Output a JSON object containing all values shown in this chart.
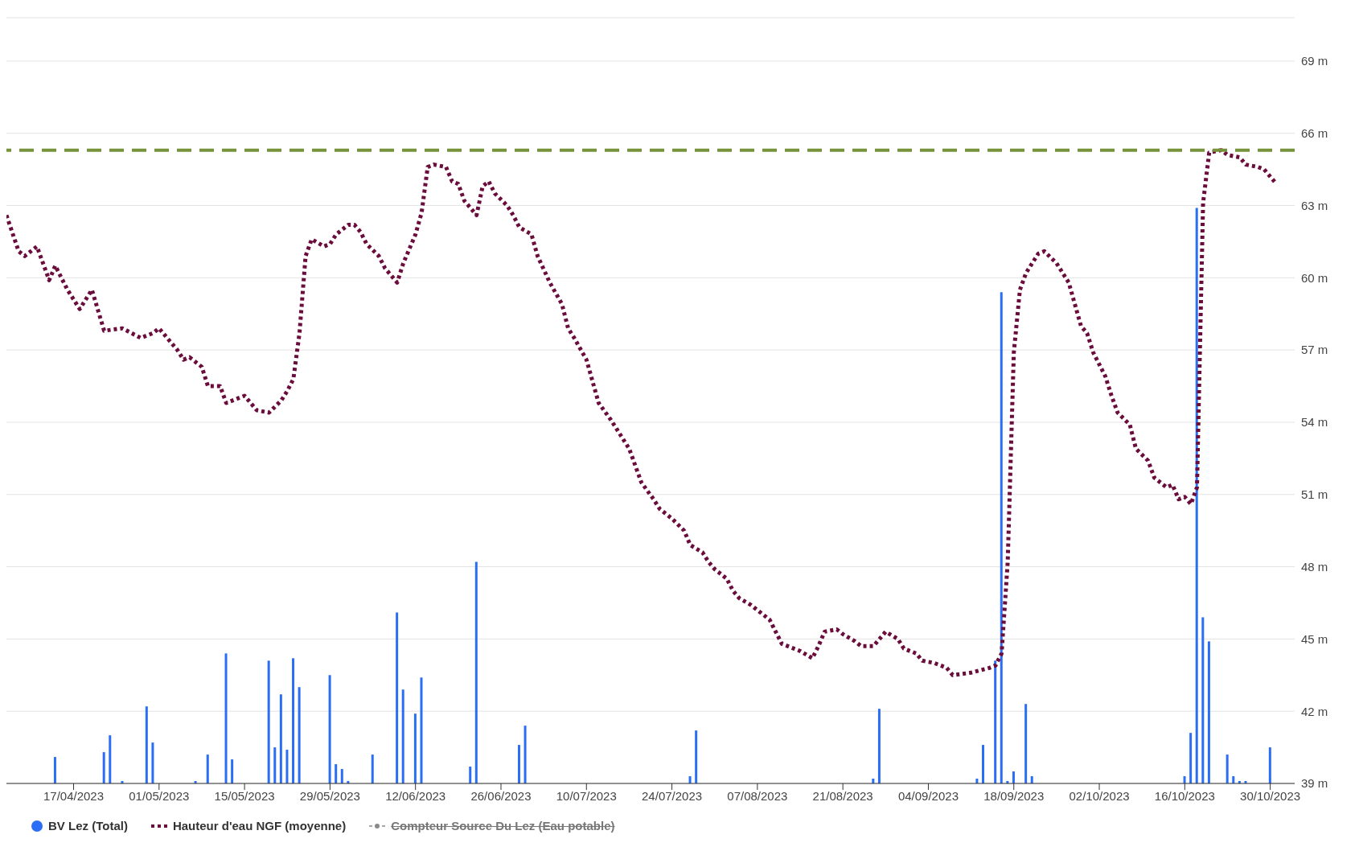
{
  "chart_data": {
    "type": "line",
    "xlim": [
      "2023-04-06",
      "2023-11-03"
    ],
    "xticks": [
      {
        "value": "2023-04-17",
        "label": "17/04/2023"
      },
      {
        "value": "2023-05-01",
        "label": "01/05/2023"
      },
      {
        "value": "2023-05-15",
        "label": "15/05/2023"
      },
      {
        "value": "2023-05-29",
        "label": "29/05/2023"
      },
      {
        "value": "2023-06-12",
        "label": "12/06/2023"
      },
      {
        "value": "2023-06-26",
        "label": "26/06/2023"
      },
      {
        "value": "2023-07-10",
        "label": "10/07/2023"
      },
      {
        "value": "2023-07-24",
        "label": "24/07/2023"
      },
      {
        "value": "2023-08-07",
        "label": "07/08/2023"
      },
      {
        "value": "2023-08-21",
        "label": "21/08/2023"
      },
      {
        "value": "2023-09-04",
        "label": "04/09/2023"
      },
      {
        "value": "2023-09-18",
        "label": "18/09/2023"
      },
      {
        "value": "2023-10-02",
        "label": "02/10/2023"
      },
      {
        "value": "2023-10-16",
        "label": "16/10/2023"
      },
      {
        "value": "2023-10-30",
        "label": "30/10/2023"
      }
    ],
    "ylim": [
      39,
      70.8
    ],
    "yticks": [
      {
        "value": 39,
        "label": "39 m"
      },
      {
        "value": 42,
        "label": "42 m"
      },
      {
        "value": 45,
        "label": "45 m"
      },
      {
        "value": 48,
        "label": "48 m"
      },
      {
        "value": 51,
        "label": "51 m"
      },
      {
        "value": 54,
        "label": "54 m"
      },
      {
        "value": 57,
        "label": "57 m"
      },
      {
        "value": 60,
        "label": "60 m"
      },
      {
        "value": 63,
        "label": "63 m"
      },
      {
        "value": 66,
        "label": "66 m"
      },
      {
        "value": 69,
        "label": "69 m"
      }
    ],
    "grid": "y",
    "legend": "bottom left",
    "marker": "none",
    "line_style": "dotted",
    "ref_lines": [
      {
        "axis": "y",
        "value": 65.3,
        "color": "#76933c",
        "line_style": "dashed"
      }
    ],
    "series": [
      {
        "name": "BV Lez (Total)",
        "type": "bar",
        "color": "#2a6ef5",
        "base": [
          39,
          39,
          39,
          39,
          39,
          39,
          39,
          39,
          39,
          39,
          39,
          39,
          39,
          39,
          39,
          39,
          39,
          39,
          39,
          39,
          39,
          39,
          39,
          39,
          39,
          39,
          39,
          39,
          39,
          39,
          39,
          39,
          39,
          39,
          39,
          39,
          39,
          39,
          39,
          39,
          39,
          39,
          39,
          39,
          39,
          39,
          39,
          39,
          39,
          39,
          39
        ],
        "x": [
          "2023-04-14",
          "2023-04-22",
          "2023-04-23",
          "2023-04-25",
          "2023-04-29",
          "2023-04-30",
          "2023-05-07",
          "2023-05-09",
          "2023-05-12",
          "2023-05-13",
          "2023-05-19",
          "2023-05-20",
          "2023-05-21",
          "2023-05-22",
          "2023-05-23",
          "2023-05-24",
          "2023-05-29",
          "2023-05-30",
          "2023-05-31",
          "2023-06-01",
          "2023-06-05",
          "2023-06-09",
          "2023-06-10",
          "2023-06-12",
          "2023-06-13",
          "2023-06-21",
          "2023-06-22",
          "2023-06-29",
          "2023-06-30",
          "2023-07-27",
          "2023-07-28",
          "2023-08-26",
          "2023-08-27",
          "2023-09-12",
          "2023-09-13",
          "2023-09-15",
          "2023-09-16",
          "2023-09-17",
          "2023-09-18",
          "2023-09-20",
          "2023-09-21",
          "2023-10-16",
          "2023-10-17",
          "2023-10-18",
          "2023-10-19",
          "2023-10-20",
          "2023-10-23",
          "2023-10-24",
          "2023-10-25",
          "2023-10-26",
          "2023-10-30"
        ],
        "values": [
          1.1,
          1.3,
          2.0,
          0.1,
          3.2,
          1.7,
          0.1,
          1.2,
          5.4,
          1.0,
          5.1,
          1.5,
          3.7,
          1.4,
          5.2,
          4.0,
          4.5,
          0.8,
          0.6,
          0.1,
          1.2,
          7.1,
          3.9,
          2.9,
          4.4,
          0.7,
          9.2,
          1.6,
          2.4,
          0.3,
          2.2,
          0.2,
          3.1,
          0.2,
          1.6,
          5.1,
          20.4,
          0.1,
          0.5,
          3.3,
          0.3,
          0.3,
          2.1,
          23.9,
          6.9,
          5.9,
          1.2,
          0.3,
          0.1,
          0.1,
          1.5
        ]
      },
      {
        "name": "Hauteur d'eau NGF (moyenne)",
        "color": "#6b0d3c",
        "x": [
          "2023-04-06",
          "2023-04-08",
          "2023-04-09",
          "2023-04-11",
          "2023-04-13",
          "2023-04-14",
          "2023-04-16",
          "2023-04-18",
          "2023-04-20",
          "2023-04-22",
          "2023-04-25",
          "2023-04-28",
          "2023-04-30",
          "2023-05-01",
          "2023-05-04",
          "2023-05-05",
          "2023-05-06",
          "2023-05-08",
          "2023-05-09",
          "2023-05-11",
          "2023-05-12",
          "2023-05-15",
          "2023-05-17",
          "2023-05-19",
          "2023-05-21",
          "2023-05-22",
          "2023-05-23",
          "2023-05-24",
          "2023-05-25",
          "2023-05-26",
          "2023-05-28",
          "2023-05-29",
          "2023-05-30",
          "2023-06-01",
          "2023-06-02",
          "2023-06-03",
          "2023-06-04",
          "2023-06-06",
          "2023-06-07",
          "2023-06-09",
          "2023-06-10",
          "2023-06-12",
          "2023-06-13",
          "2023-06-14",
          "2023-06-15",
          "2023-06-17",
          "2023-06-18",
          "2023-06-19",
          "2023-06-20",
          "2023-06-22",
          "2023-06-23",
          "2023-06-24",
          "2023-06-25",
          "2023-06-27",
          "2023-06-28",
          "2023-06-29",
          "2023-07-01",
          "2023-07-02",
          "2023-07-04",
          "2023-07-06",
          "2023-07-07",
          "2023-07-08",
          "2023-07-10",
          "2023-07-11",
          "2023-07-12",
          "2023-07-14",
          "2023-07-15",
          "2023-07-17",
          "2023-07-18",
          "2023-07-19",
          "2023-07-21",
          "2023-07-22",
          "2023-07-24",
          "2023-07-26",
          "2023-07-27",
          "2023-07-29",
          "2023-07-30",
          "2023-07-31",
          "2023-08-02",
          "2023-08-03",
          "2023-08-04",
          "2023-08-06",
          "2023-08-07",
          "2023-08-09",
          "2023-08-10",
          "2023-08-11",
          "2023-08-13",
          "2023-08-14",
          "2023-08-16",
          "2023-08-17",
          "2023-08-18",
          "2023-08-20",
          "2023-08-21",
          "2023-08-23",
          "2023-08-24",
          "2023-08-26",
          "2023-08-27",
          "2023-08-28",
          "2023-08-30",
          "2023-08-31",
          "2023-09-02",
          "2023-09-03",
          "2023-09-05",
          "2023-09-07",
          "2023-09-08",
          "2023-09-11",
          "2023-09-14",
          "2023-09-15",
          "2023-09-16",
          "2023-09-17",
          "2023-09-18",
          "2023-09-19",
          "2023-09-20",
          "2023-09-22",
          "2023-09-23",
          "2023-09-25",
          "2023-09-27",
          "2023-09-28",
          "2023-09-29",
          "2023-09-30",
          "2023-10-01",
          "2023-10-03",
          "2023-10-04",
          "2023-10-05",
          "2023-10-07",
          "2023-10-08",
          "2023-10-10",
          "2023-10-11",
          "2023-10-13",
          "2023-10-14",
          "2023-10-15",
          "2023-10-16",
          "2023-10-17",
          "2023-10-18",
          "2023-10-19",
          "2023-10-20",
          "2023-10-22",
          "2023-10-23",
          "2023-10-25",
          "2023-10-26",
          "2023-10-28",
          "2023-10-29",
          "2023-10-31"
        ],
        "values": [
          62.6,
          61.1,
          60.9,
          61.3,
          59.9,
          60.5,
          59.5,
          58.7,
          59.5,
          57.8,
          57.9,
          57.5,
          57.7,
          57.9,
          57.0,
          56.6,
          56.7,
          56.3,
          55.5,
          55.5,
          54.8,
          55.1,
          54.5,
          54.4,
          54.9,
          55.3,
          55.8,
          57.7,
          60.9,
          61.6,
          61.3,
          61.4,
          61.8,
          62.2,
          62.2,
          61.9,
          61.4,
          60.9,
          60.4,
          59.8,
          60.6,
          61.8,
          62.7,
          64.6,
          64.7,
          64.6,
          64.0,
          63.9,
          63.2,
          62.6,
          63.8,
          64.0,
          63.5,
          63.0,
          62.6,
          62.1,
          61.8,
          60.9,
          59.8,
          58.9,
          57.9,
          57.5,
          56.6,
          55.7,
          54.8,
          54.1,
          53.7,
          52.9,
          52.2,
          51.5,
          50.8,
          50.4,
          50.0,
          49.5,
          48.9,
          48.6,
          48.2,
          47.9,
          47.5,
          47.0,
          46.7,
          46.4,
          46.2,
          45.8,
          45.3,
          44.8,
          44.6,
          44.5,
          44.2,
          44.7,
          45.3,
          45.4,
          45.2,
          44.9,
          44.7,
          44.7,
          45.0,
          45.3,
          45.0,
          44.6,
          44.4,
          44.1,
          44.0,
          43.8,
          43.5,
          43.6,
          43.8,
          43.9,
          44.4,
          48.2,
          56.9,
          59.5,
          60.2,
          61.0,
          61.1,
          60.6,
          59.8,
          58.9,
          58.0,
          57.7,
          56.9,
          55.9,
          55.1,
          54.4,
          53.9,
          52.9,
          52.4,
          51.7,
          51.3,
          51.4,
          50.8,
          50.9,
          50.6,
          51.3,
          63.1,
          65.2,
          65.3,
          65.1,
          65.0,
          64.7,
          64.6,
          64.5,
          63.9
        ]
      },
      {
        "name": "Compteur Source Du Lez (Eau potable)",
        "color": "#8a8a8a"
      }
    ]
  }
}
